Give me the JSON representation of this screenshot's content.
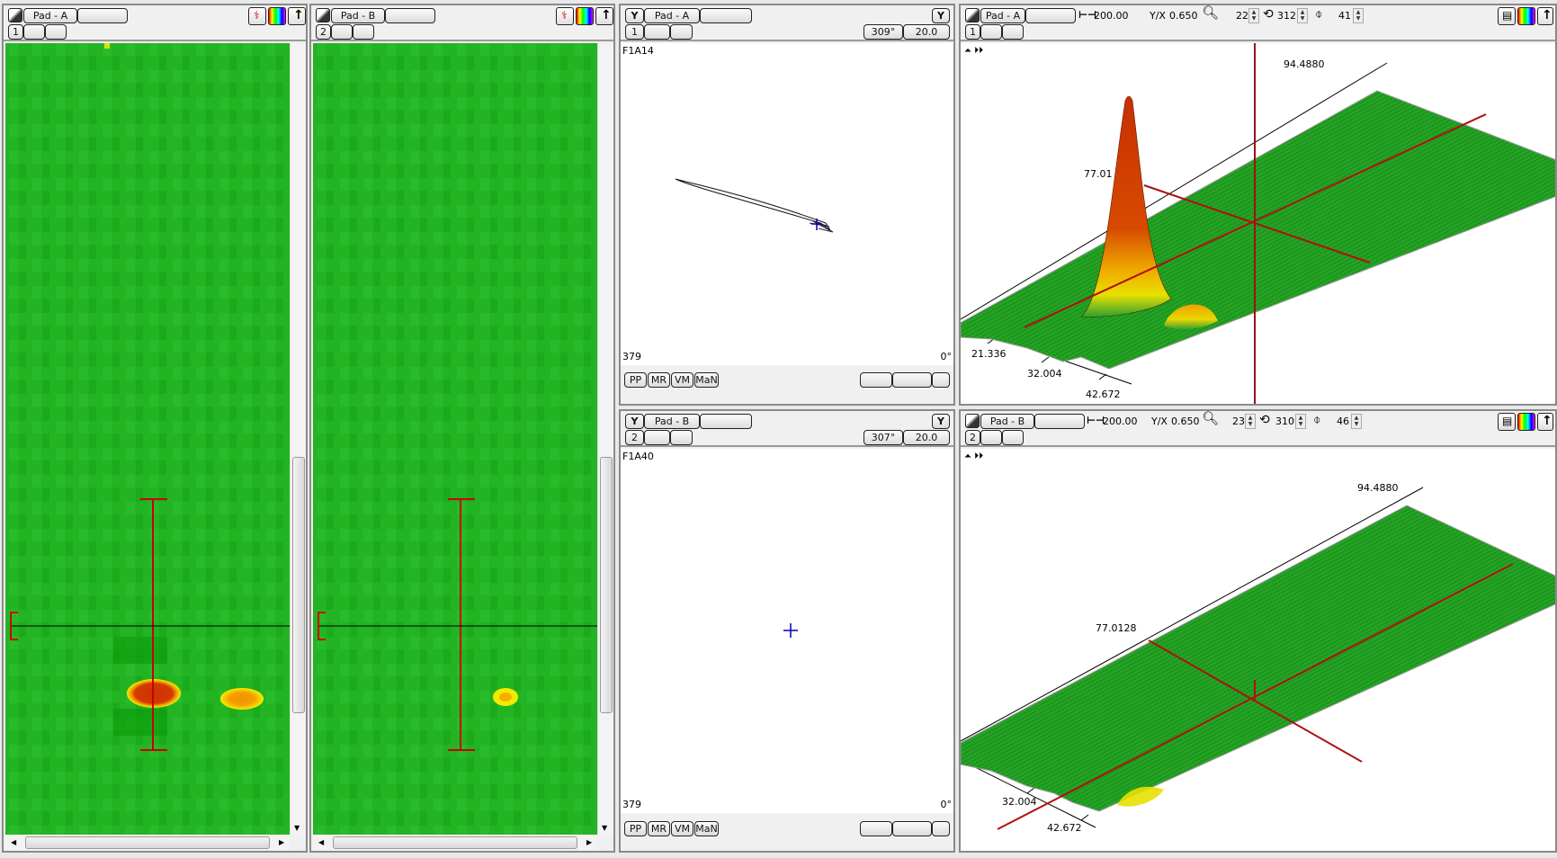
{
  "cscan_panels": [
    {
      "pad_label": "Pad - A",
      "channel": "1",
      "icons": [
        "probe-icon",
        "palette-icon",
        "arrow-up-icon"
      ]
    },
    {
      "pad_label": "Pad - B",
      "channel": "2",
      "icons": [
        "probe-icon",
        "palette-icon",
        "arrow-up-icon"
      ]
    }
  ],
  "impedance_panels": [
    {
      "pad_label": "Pad - A",
      "channel": "1",
      "phase": "309°",
      "gain": "20.0",
      "trace_label": "F1A14",
      "bottom_left_value": "379",
      "bottom_right_value": "0°",
      "buttons": [
        "PP",
        "MR",
        "VM",
        "MaN"
      ]
    },
    {
      "pad_label": "Pad - B",
      "channel": "2",
      "phase": "307°",
      "gain": "20.0",
      "trace_label": "F1A40",
      "bottom_left_value": "379",
      "bottom_right_value": "0°",
      "buttons": [
        "PP",
        "MR",
        "VM",
        "MaN"
      ]
    }
  ],
  "view3d_panels": [
    {
      "pad_label": "Pad - A",
      "channel": "1",
      "span": "200.00",
      "yx_label": "Y/X",
      "yx_value": "0.650",
      "zoom": "22",
      "rotation": "312",
      "tilt": "41",
      "axis_labels": {
        "far": "94.4880",
        "mid": "77.01",
        "near1": "21.336",
        "near2": "32.004",
        "near3": "42.672"
      }
    },
    {
      "pad_label": "Pad - B",
      "channel": "2",
      "span": "200.00",
      "yx_label": "Y/X",
      "yx_value": "0.650",
      "zoom": "23",
      "rotation": "310",
      "tilt": "46",
      "axis_labels": {
        "far": "94.4880",
        "mid": "77.0128",
        "near2": "32.004",
        "near3": "42.672"
      }
    }
  ],
  "colors": {
    "surface_green": "#22a822",
    "peak_red": "#cc3300",
    "peak_yellow": "#f0e000",
    "cursor_red": "#cc0000",
    "marker_blue": "#0000aa"
  }
}
